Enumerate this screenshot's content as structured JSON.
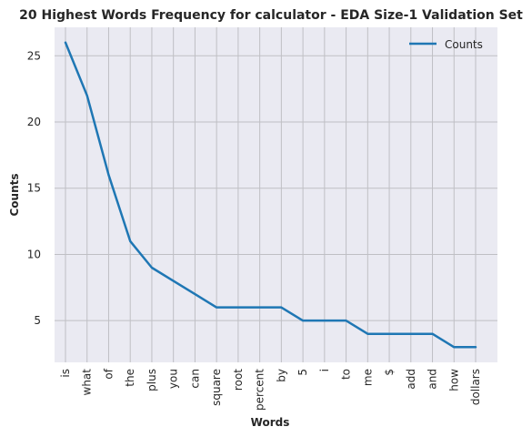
{
  "chart_data": {
    "type": "line",
    "title": "20 Highest Words Frequency for calculator - EDA Size-1 Validation Set",
    "xlabel": "Words",
    "ylabel": "Counts",
    "categories": [
      "is",
      "what",
      "of",
      "the",
      "plus",
      "you",
      "can",
      "square",
      "root",
      "percent",
      "by",
      "5",
      "i",
      "to",
      "me",
      "$",
      "add",
      "and",
      "how",
      "dollars"
    ],
    "series": [
      {
        "name": "Counts",
        "values": [
          26,
          22,
          16,
          11,
          9,
          8,
          7,
          6,
          6,
          6,
          6,
          5,
          5,
          5,
          4,
          4,
          4,
          4,
          3,
          3
        ]
      }
    ],
    "yticks": [
      5,
      10,
      15,
      20,
      25
    ],
    "ylim": [
      1.85,
      27.15
    ],
    "grid": true,
    "legend_position": "top-right",
    "line_color": "#1f77b4",
    "background_color": "#eaeaf2",
    "grid_color": "#bfbfc4"
  }
}
